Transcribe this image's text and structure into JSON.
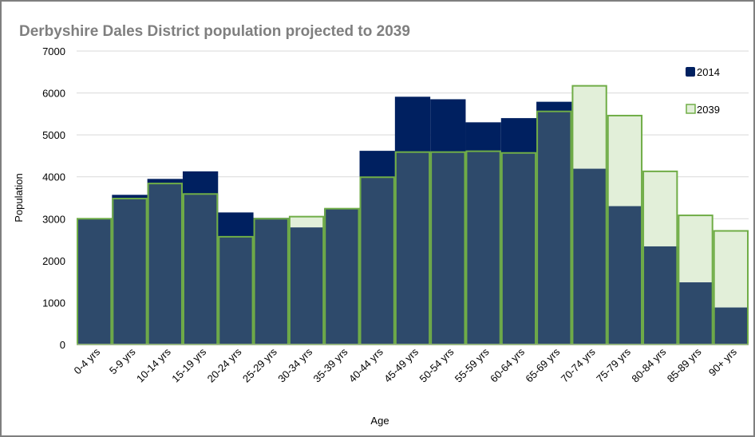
{
  "chart_data": {
    "type": "bar",
    "title": "Derbyshire Dales District population  projected to 2039",
    "xlabel": "Age",
    "ylabel": "Population",
    "ylim": [
      0,
      7000
    ],
    "yticks": [
      "0",
      "1000",
      "2000",
      "3000",
      "4000",
      "5000",
      "6000",
      "7000"
    ],
    "grid": true,
    "legend_position": "top-right",
    "categories": [
      "0-4 yrs",
      "5-9 yrs",
      "10-14 yrs",
      "15-19 yrs",
      "20-24 yrs",
      "25-29 yrs",
      "30-34 yrs",
      "35-39 yrs",
      "40-44 yrs",
      "45-49 yrs",
      "50-54 yrs",
      "55-59 yrs",
      "60-64 yrs",
      "65-69 yrs",
      "70-74 yrs",
      "75-79 yrs",
      "80-84 yrs",
      "85-89 yrs",
      "90+ yrs"
    ],
    "series": [
      {
        "name": "2014",
        "color": "#002060",
        "values": [
          2990,
          3570,
          3950,
          4130,
          3150,
          3020,
          2790,
          3240,
          4620,
          5910,
          5850,
          5300,
          5400,
          5790,
          4190,
          3300,
          2340,
          1480,
          880
        ]
      },
      {
        "name": "2039",
        "fill": "#e2efd9",
        "stroke": "#70ad47",
        "values": [
          3000,
          3480,
          3840,
          3590,
          2570,
          3000,
          3050,
          3240,
          3990,
          4590,
          4590,
          4610,
          4570,
          5560,
          6170,
          5460,
          4130,
          3080,
          2710
        ]
      }
    ],
    "colors": {
      "series_2014": "#002060",
      "series_2039_fill": "#e2efd9",
      "series_2039_stroke": "#70ad47",
      "overlap": "#2e4a6b",
      "title": "#7f7f7f",
      "gridline": "#d9d9d9"
    }
  }
}
